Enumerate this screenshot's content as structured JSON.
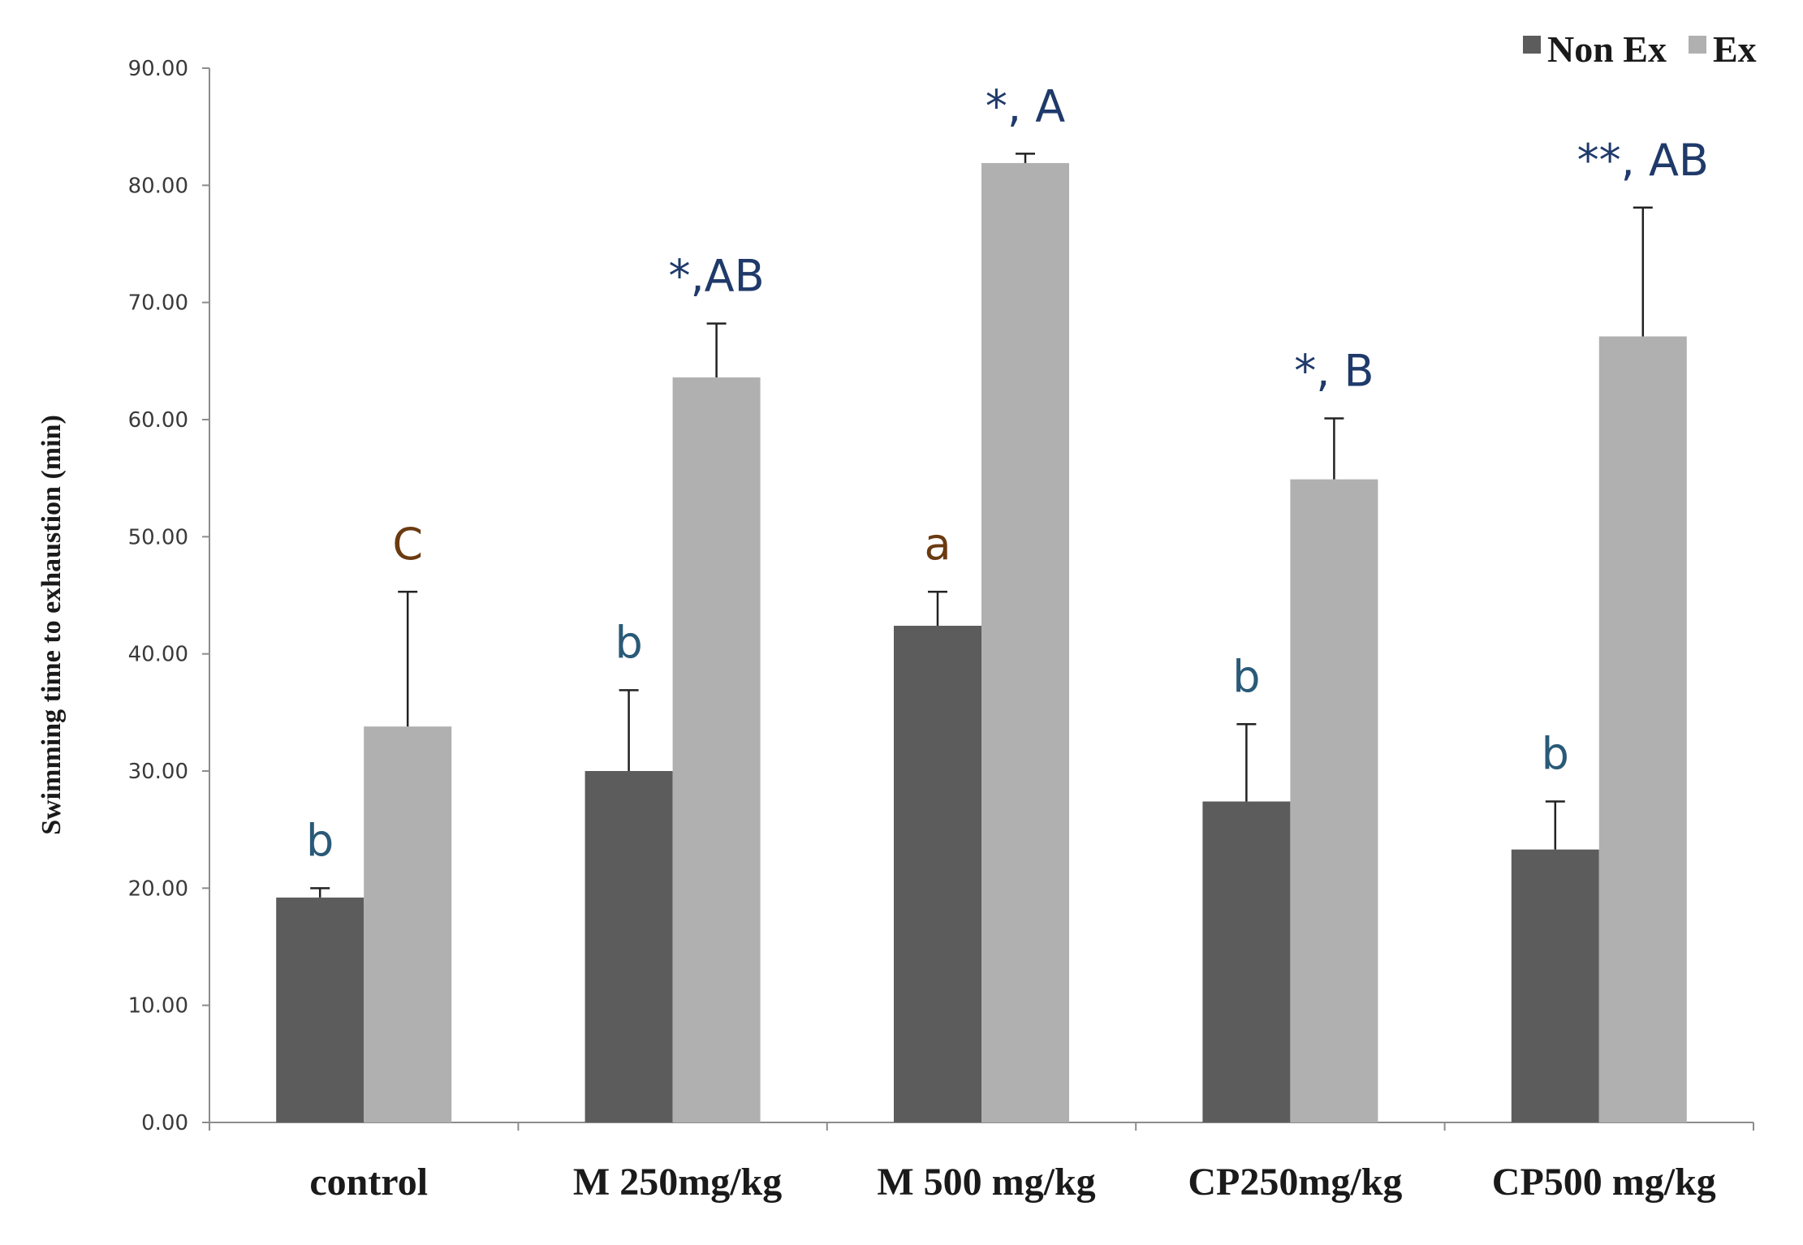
{
  "chart_data": {
    "type": "bar",
    "title": "",
    "xlabel": "",
    "ylabel": "Swimming time to exhaustion (min)",
    "ylim": [
      0,
      90
    ],
    "ytick_step": 10,
    "ytick_labels": [
      "0.00",
      "10.00",
      "20.00",
      "30.00",
      "40.00",
      "50.00",
      "60.00",
      "70.00",
      "80.00",
      "90.00"
    ],
    "grid": false,
    "legend_position": "top-right",
    "categories": [
      "control",
      "M 250mg/kg",
      "M 500 mg/kg",
      "CP250mg/kg",
      "CP500 mg/kg"
    ],
    "series": [
      {
        "name": "Non Ex",
        "color": "#5c5c5c",
        "values": [
          19.2,
          30.0,
          42.4,
          27.4,
          23.3
        ],
        "errors": [
          0.8,
          6.9,
          2.9,
          6.6,
          4.1
        ],
        "labels": [
          "b",
          "b",
          "a",
          "b",
          "b"
        ]
      },
      {
        "name": "Ex",
        "color": "#b0b0b0",
        "values": [
          33.8,
          63.6,
          81.9,
          54.9,
          67.1
        ],
        "errors": [
          11.5,
          4.6,
          0.8,
          5.2,
          11.0
        ],
        "labels": [
          "C",
          "*,AB",
          "*, A",
          "*, B",
          "**, AB"
        ]
      }
    ],
    "label_colors": [
      "#2a5a78",
      "#2a5a78",
      "#6b3a10",
      "#2a5a78",
      "#2a5a78"
    ],
    "ex_label_colors": [
      "#6b3a10",
      "#1f3a6a",
      "#1f3a6a",
      "#1f3a6a",
      "#1f3a6a"
    ]
  }
}
